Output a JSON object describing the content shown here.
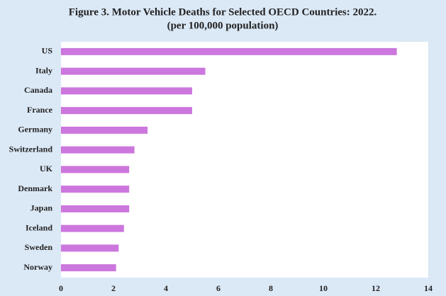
{
  "chart_data": {
    "type": "hbar",
    "title": "Figure 3. Motor Vehicle Deaths for Selected OECD Countries: 2022.",
    "subtitle": "(per 100,000 population)",
    "categories": [
      "US",
      "Italy",
      "Canada",
      "France",
      "Germany",
      "Switzerland",
      "UK",
      "Denmark",
      "Japan",
      "Iceland",
      "Sweden",
      "Norway"
    ],
    "values": [
      12.8,
      5.5,
      5.0,
      5.0,
      3.3,
      2.8,
      2.6,
      2.6,
      2.6,
      2.4,
      2.2,
      2.1
    ],
    "color": "#cc77dd",
    "xlim": [
      0,
      14
    ],
    "xticks": [
      0,
      2,
      4,
      6,
      8,
      10,
      12,
      14
    ],
    "grid": false
  }
}
